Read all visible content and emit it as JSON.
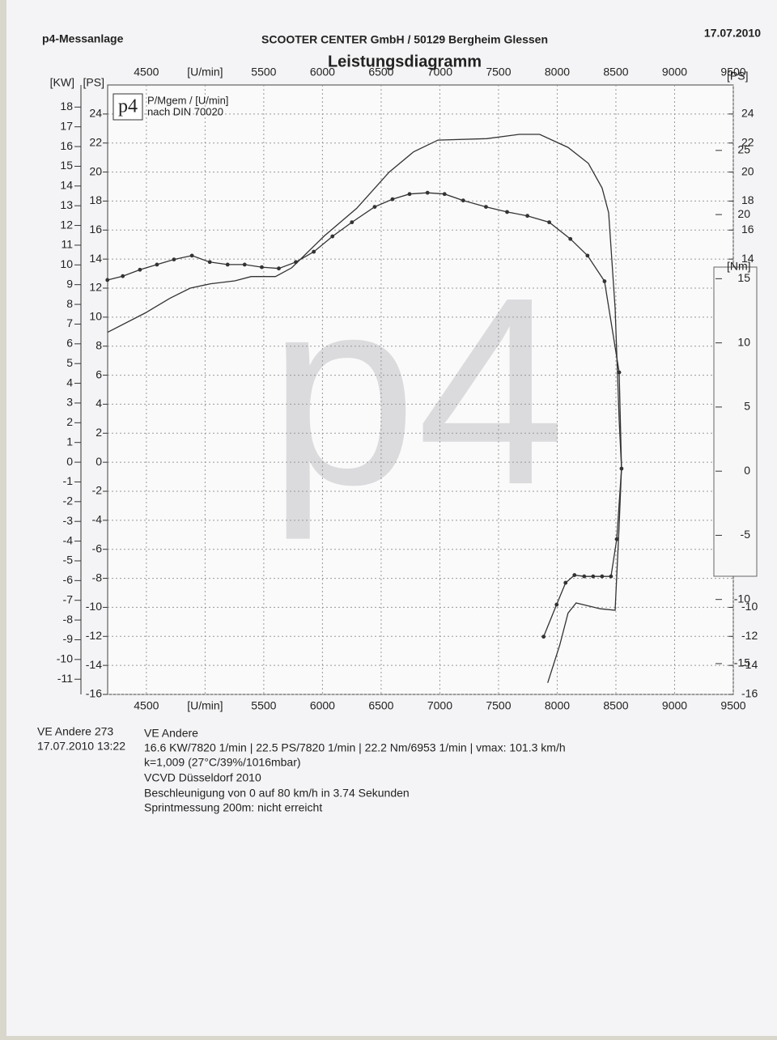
{
  "header": {
    "left": "p4-Messanlage",
    "center": "SCOOTER CENTER GmbH / 50129 Bergheim Glessen",
    "date": "17.07.2010"
  },
  "logo": {
    "mark": "p4",
    "line1": "P/Mgem / [U/min]",
    "line2": "nach DIN 70020"
  },
  "chart_data": {
    "type": "line",
    "title": "Leistungsdiagramm",
    "xlim": [
      4170,
      9500
    ],
    "xticks": [
      4500,
      {
        "value": 5000,
        "label": "[U/min]"
      },
      5500,
      6000,
      6500,
      7000,
      7500,
      8000,
      8500,
      9000,
      9500
    ],
    "ylabel": "[PS]",
    "ylim": [
      -16,
      26
    ],
    "yticks": [
      -16,
      -14,
      -12,
      -10,
      -8,
      -6,
      -4,
      -2,
      0,
      2,
      4,
      6,
      8,
      10,
      12,
      14,
      16,
      18,
      20,
      22,
      24
    ],
    "y_kw": {
      "label": "[KW]",
      "lim": [
        -11.77,
        19.12
      ],
      "ticks": [
        -11,
        -10,
        -9,
        -8,
        -7,
        -6,
        -5,
        -4,
        -3,
        -2,
        -1,
        0,
        1,
        2,
        3,
        4,
        5,
        6,
        7,
        8,
        9,
        10,
        11,
        12,
        13,
        14,
        15,
        16,
        17,
        18
      ]
    },
    "y_right_ps": {
      "label": "[PS]",
      "ticks": [
        -16,
        -14,
        -12,
        -10,
        14,
        16,
        18,
        20,
        22,
        24
      ]
    },
    "y2label": "[Nm]",
    "y2lim": [
      -17.4,
      30.1
    ],
    "y2ticks": [
      -15,
      -10,
      -5,
      0,
      5,
      10,
      15,
      20,
      25
    ],
    "grid": true,
    "series": [
      {
        "color": "#333333",
        "axis": "y",
        "x": [
          4168,
          4493,
          4700,
          4874,
          5047,
          5254,
          5393,
          5600,
          5738,
          6016,
          6292,
          6569,
          6777,
          6984,
          7400,
          7676,
          7850,
          8092,
          8265,
          8382,
          8438,
          8493,
          8528,
          8548,
          8528,
          8493,
          8368,
          8161,
          8092,
          8022,
          7919
        ],
        "values": [
          8.95,
          10.3,
          11.3,
          12.0,
          12.3,
          12.5,
          12.8,
          12.8,
          13.4,
          15.6,
          17.5,
          20.0,
          21.4,
          22.2,
          22.3,
          22.6,
          22.6,
          21.7,
          20.6,
          18.9,
          17.2,
          10.6,
          2.9,
          -0.4,
          -4.3,
          -10.2,
          -10.1,
          -9.7,
          -10.4,
          -12.6,
          -15.2
        ]
      },
      {
        "color": "#333333",
        "axis": "y2",
        "markers": true,
        "x": [
          4168,
          4299,
          4445,
          4590,
          4735,
          4888,
          5040,
          5192,
          5337,
          5483,
          5628,
          5773,
          5926,
          6085,
          6251,
          6445,
          6597,
          6742,
          6895,
          7040,
          7199,
          7393,
          7573,
          7746,
          7932,
          8112,
          8258,
          8403,
          8528,
          8548,
          8507,
          8458,
          8382,
          8306,
          8230,
          8147,
          8071,
          7995,
          7884
        ],
        "values": [
          14.9,
          15.2,
          15.7,
          16.1,
          16.5,
          16.8,
          16.3,
          16.1,
          16.1,
          15.9,
          15.8,
          16.3,
          17.1,
          18.3,
          19.4,
          20.6,
          21.2,
          21.6,
          21.7,
          21.6,
          21.1,
          20.6,
          20.2,
          19.9,
          19.4,
          18.1,
          16.8,
          14.8,
          7.7,
          0.2,
          -5.3,
          -8.2,
          -8.2,
          -8.2,
          -8.2,
          -8.1,
          -8.7,
          -10.4,
          -12.9
        ]
      }
    ]
  },
  "footer": {
    "id": "VE Andere 273",
    "datetime": "17.07.2010  13:22",
    "vehicle": "VE Andere",
    "lines": [
      "16.6 KW/7820 1/min  |  22.5 PS/7820 1/min  |  22.2 Nm/6953 1/min | vmax: 101.3 km/h",
      "k=1,009 (27°C/39%/1016mbar)",
      "VCVD Düsseldorf 2010",
      "Beschleunigung von 0 auf 80 km/h in 3.74 Sekunden",
      "Sprintmessung 200m: nicht erreicht"
    ]
  }
}
